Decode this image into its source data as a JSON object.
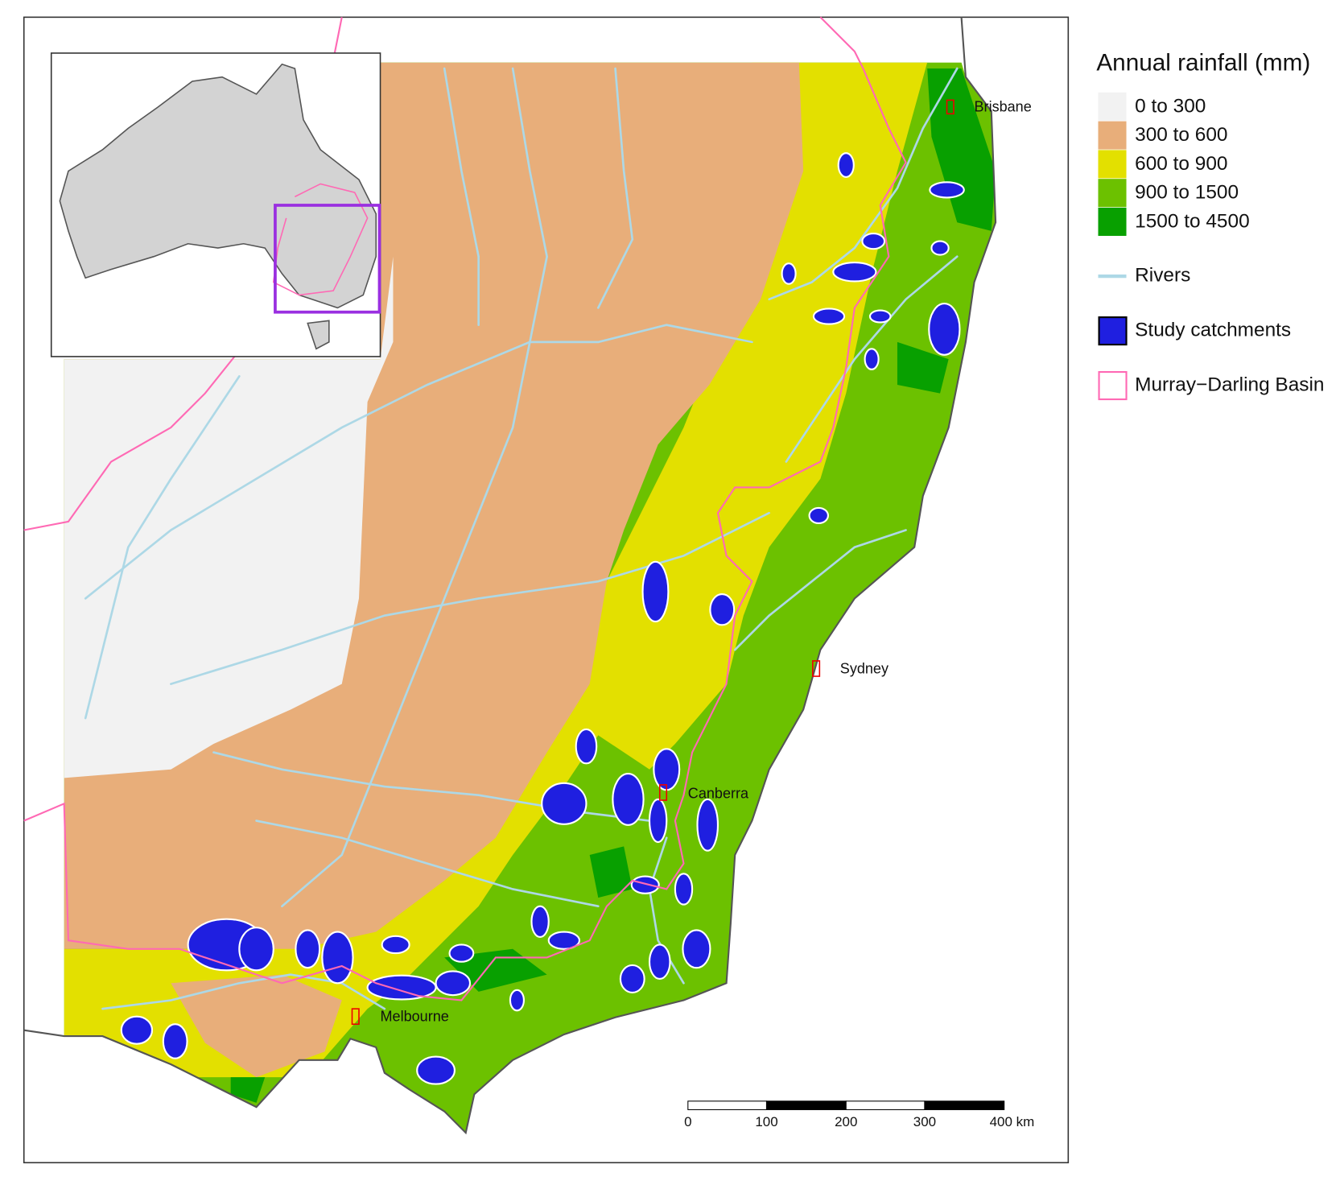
{
  "legend": {
    "title": "Annual rainfall (mm)",
    "rainfall_classes": [
      {
        "label": "0 to 300",
        "color": "#f2f2f2"
      },
      {
        "label": "300 to 600",
        "color": "#e8ae7a"
      },
      {
        "label": "600 to 900",
        "color": "#e3e000"
      },
      {
        "label": "900 to 1500",
        "color": "#6cc100"
      },
      {
        "label": "1500 to 4500",
        "color": "#08a000"
      }
    ],
    "rivers": {
      "label": "Rivers",
      "color": "#add8e6"
    },
    "catchments": {
      "label": "Study catchments",
      "color": "#1f1fe0"
    },
    "basin": {
      "label": "Murray−Darling Basin",
      "color": "#ff69b4"
    }
  },
  "cities": [
    {
      "label": "Brisbane"
    },
    {
      "label": "Sydney"
    },
    {
      "label": "Canberra"
    },
    {
      "label": "Melbourne"
    }
  ],
  "scale_bar": {
    "labels": [
      "0",
      "100",
      "200",
      "300",
      "400 km"
    ]
  },
  "inset_box_color": "#9a2fe0"
}
